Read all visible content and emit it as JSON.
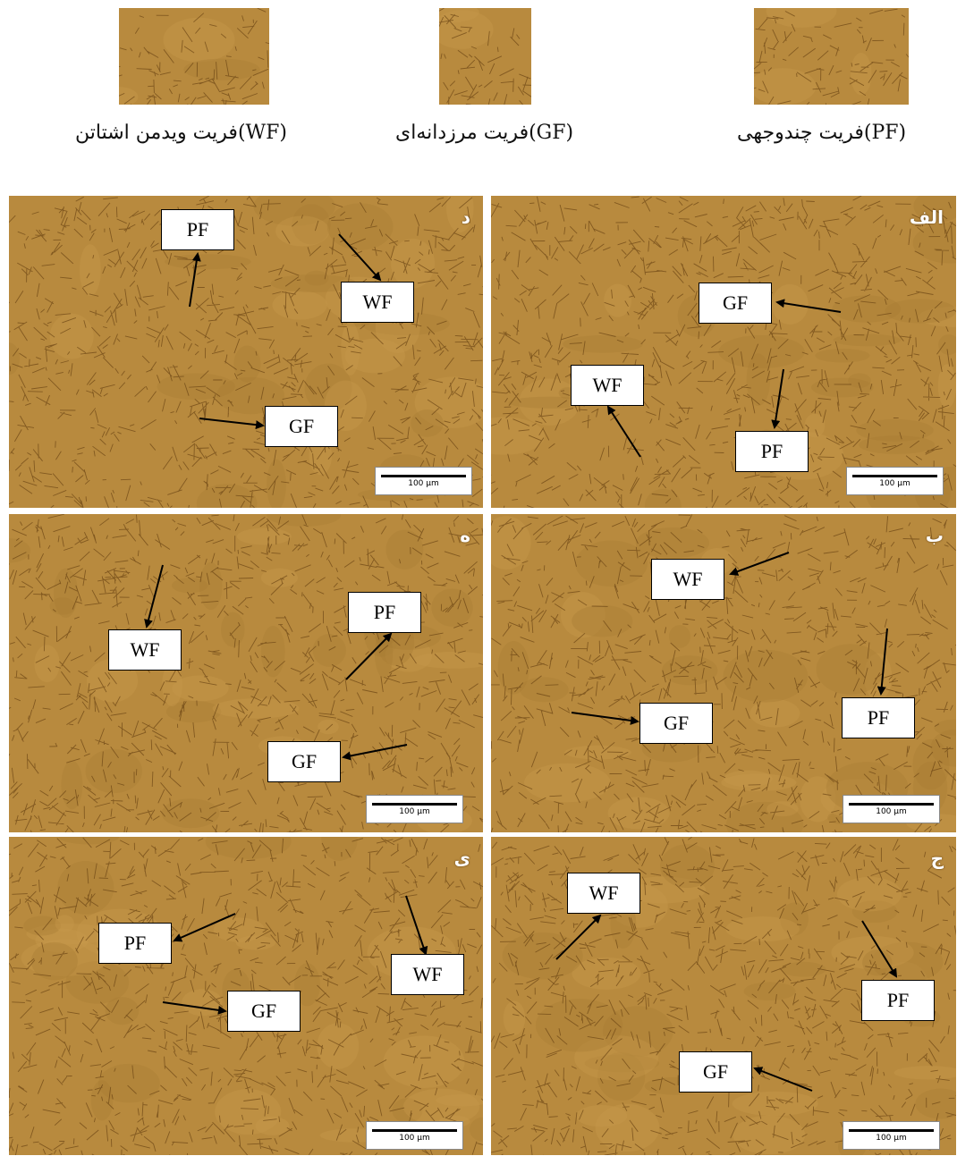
{
  "legend": [
    {
      "caption": "فریت چندوجهی(PF)"
    },
    {
      "caption": "فریت مرزدانه‌ای(GF)"
    },
    {
      "caption": "فریت ویدمن اشتاتن(WF)"
    }
  ],
  "panels": [
    {
      "letter": "د",
      "scale": "100 µm"
    },
    {
      "letter": "الف",
      "scale": "100 µm"
    },
    {
      "letter": "ه",
      "scale": "100 µm"
    },
    {
      "letter": "ب",
      "scale": "100 µm"
    },
    {
      "letter": "ی",
      "scale": "100 µm"
    },
    {
      "letter": "ج",
      "scale": "100 µm"
    }
  ],
  "labels": {
    "pf": "PF",
    "gf": "GF",
    "wf": "WF"
  },
  "colors": {
    "micrograph_base": "#b88a3e",
    "grain_boundary": "#6b4414"
  }
}
